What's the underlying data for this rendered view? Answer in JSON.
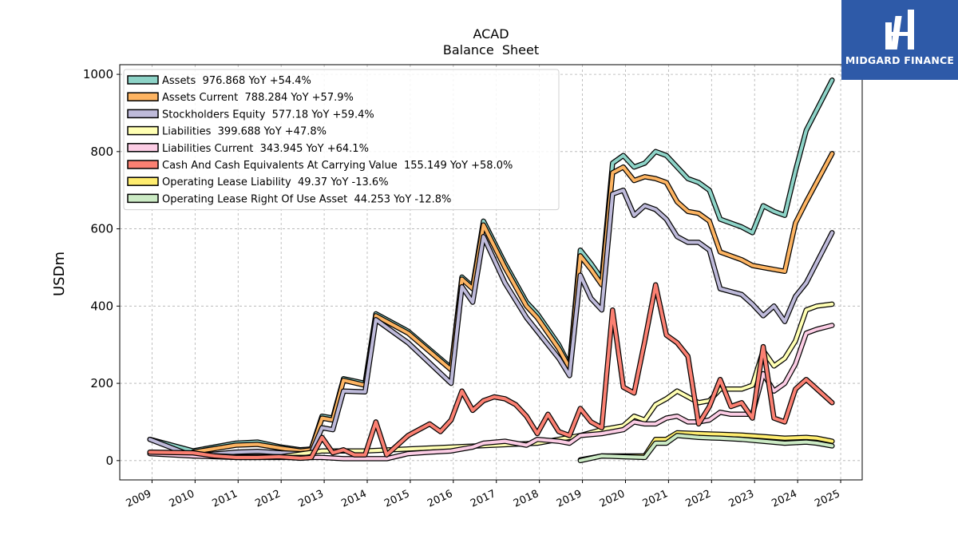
{
  "brand": {
    "name": "MIDGARD FINANCE"
  },
  "chart_data": {
    "type": "line",
    "title": "ACAD",
    "subtitle": "Balance  Sheet",
    "ylabel": "USDm",
    "xlabel": "",
    "ylim": [
      -50,
      1025
    ],
    "xlim": [
      2008.25,
      2025.5
    ],
    "yticks": [
      0,
      200,
      400,
      600,
      800,
      1000
    ],
    "xticks": [
      "2009",
      "2010",
      "2011",
      "2012",
      "2013",
      "2014",
      "2015",
      "2016",
      "2017",
      "2018",
      "2019",
      "2020",
      "2021",
      "2022",
      "2023",
      "2024",
      "2025"
    ],
    "grid": true,
    "legend_position": "top-left",
    "series": [
      {
        "name": "Assets",
        "legend": "Assets  976.868 YoY +54.4%",
        "color": "#8dd3c7",
        "points": [
          [
            2008.95,
            55
          ],
          [
            2009.95,
            25
          ],
          [
            2010.95,
            45
          ],
          [
            2011.45,
            48
          ],
          [
            2012.0,
            35
          ],
          [
            2012.45,
            28
          ],
          [
            2012.7,
            30
          ],
          [
            2012.95,
            115
          ],
          [
            2013.2,
            110
          ],
          [
            2013.45,
            212
          ],
          [
            2013.95,
            200
          ],
          [
            2014.2,
            380
          ],
          [
            2014.95,
            335
          ],
          [
            2015.95,
            240
          ],
          [
            2016.2,
            475
          ],
          [
            2016.45,
            450
          ],
          [
            2016.7,
            620
          ],
          [
            2017.2,
            510
          ],
          [
            2017.7,
            410
          ],
          [
            2017.95,
            380
          ],
          [
            2018.45,
            300
          ],
          [
            2018.7,
            245
          ],
          [
            2018.95,
            545
          ],
          [
            2019.2,
            510
          ],
          [
            2019.45,
            470
          ],
          [
            2019.7,
            770
          ],
          [
            2019.95,
            790
          ],
          [
            2020.2,
            760
          ],
          [
            2020.45,
            770
          ],
          [
            2020.7,
            800
          ],
          [
            2020.95,
            790
          ],
          [
            2021.45,
            730
          ],
          [
            2021.7,
            720
          ],
          [
            2021.95,
            700
          ],
          [
            2022.2,
            625
          ],
          [
            2022.7,
            605
          ],
          [
            2022.95,
            590
          ],
          [
            2023.2,
            660
          ],
          [
            2023.45,
            645
          ],
          [
            2023.7,
            635
          ],
          [
            2023.95,
            750
          ],
          [
            2024.2,
            855
          ],
          [
            2024.8,
            985
          ]
        ]
      },
      {
        "name": "Assets Current",
        "legend": "Assets Current  788.284 YoY +57.9%",
        "color": "#fdb462",
        "points": [
          [
            2009.95,
            22
          ],
          [
            2010.95,
            40
          ],
          [
            2011.45,
            42
          ],
          [
            2012.0,
            32
          ],
          [
            2012.45,
            25
          ],
          [
            2012.7,
            28
          ],
          [
            2012.95,
            110
          ],
          [
            2013.2,
            105
          ],
          [
            2013.45,
            208
          ],
          [
            2013.95,
            195
          ],
          [
            2014.2,
            375
          ],
          [
            2014.95,
            330
          ],
          [
            2015.95,
            235
          ],
          [
            2016.2,
            470
          ],
          [
            2016.45,
            445
          ],
          [
            2016.7,
            610
          ],
          [
            2017.2,
            500
          ],
          [
            2017.7,
            400
          ],
          [
            2017.95,
            370
          ],
          [
            2018.45,
            290
          ],
          [
            2018.7,
            240
          ],
          [
            2018.95,
            530
          ],
          [
            2019.2,
            495
          ],
          [
            2019.45,
            455
          ],
          [
            2019.7,
            745
          ],
          [
            2019.95,
            760
          ],
          [
            2020.2,
            725
          ],
          [
            2020.45,
            735
          ],
          [
            2020.7,
            730
          ],
          [
            2020.95,
            720
          ],
          [
            2021.2,
            670
          ],
          [
            2021.45,
            645
          ],
          [
            2021.7,
            640
          ],
          [
            2021.95,
            620
          ],
          [
            2022.2,
            540
          ],
          [
            2022.7,
            520
          ],
          [
            2022.95,
            505
          ],
          [
            2023.2,
            500
          ],
          [
            2023.45,
            495
          ],
          [
            2023.7,
            490
          ],
          [
            2023.95,
            615
          ],
          [
            2024.2,
            670
          ],
          [
            2024.8,
            795
          ]
        ]
      },
      {
        "name": "Stockholders Equity",
        "legend": "Stockholders Equity  577.18 YoY +59.4%",
        "color": "#bebada",
        "points": [
          [
            2008.95,
            55
          ],
          [
            2009.95,
            12
          ],
          [
            2010.95,
            22
          ],
          [
            2011.45,
            24
          ],
          [
            2012.0,
            20
          ],
          [
            2012.45,
            18
          ],
          [
            2012.7,
            20
          ],
          [
            2012.95,
            85
          ],
          [
            2013.2,
            80
          ],
          [
            2013.45,
            180
          ],
          [
            2013.95,
            178
          ],
          [
            2014.2,
            365
          ],
          [
            2014.95,
            305
          ],
          [
            2015.95,
            200
          ],
          [
            2016.2,
            450
          ],
          [
            2016.45,
            410
          ],
          [
            2016.7,
            580
          ],
          [
            2017.2,
            460
          ],
          [
            2017.7,
            370
          ],
          [
            2017.95,
            335
          ],
          [
            2018.45,
            265
          ],
          [
            2018.7,
            220
          ],
          [
            2018.95,
            480
          ],
          [
            2019.2,
            420
          ],
          [
            2019.45,
            390
          ],
          [
            2019.7,
            690
          ],
          [
            2019.95,
            700
          ],
          [
            2020.2,
            635
          ],
          [
            2020.45,
            660
          ],
          [
            2020.7,
            650
          ],
          [
            2020.95,
            625
          ],
          [
            2021.2,
            580
          ],
          [
            2021.45,
            565
          ],
          [
            2021.7,
            565
          ],
          [
            2021.95,
            545
          ],
          [
            2022.2,
            445
          ],
          [
            2022.7,
            430
          ],
          [
            2022.95,
            405
          ],
          [
            2023.2,
            375
          ],
          [
            2023.45,
            400
          ],
          [
            2023.7,
            360
          ],
          [
            2023.95,
            425
          ],
          [
            2024.2,
            460
          ],
          [
            2024.8,
            590
          ]
        ]
      },
      {
        "name": "Liabilities",
        "legend": "Liabilities  399.688 YoY +47.8%",
        "color": "#ffffb3",
        "points": [
          [
            2008.95,
            20
          ],
          [
            2009.95,
            15
          ],
          [
            2010.95,
            10
          ],
          [
            2012.0,
            10
          ],
          [
            2012.95,
            25
          ],
          [
            2013.95,
            25
          ],
          [
            2014.95,
            30
          ],
          [
            2015.95,
            35
          ],
          [
            2016.95,
            40
          ],
          [
            2017.95,
            45
          ],
          [
            2018.95,
            65
          ],
          [
            2019.45,
            80
          ],
          [
            2019.95,
            90
          ],
          [
            2020.2,
            115
          ],
          [
            2020.45,
            105
          ],
          [
            2020.7,
            145
          ],
          [
            2020.95,
            160
          ],
          [
            2021.2,
            180
          ],
          [
            2021.45,
            165
          ],
          [
            2021.7,
            150
          ],
          [
            2021.95,
            155
          ],
          [
            2022.2,
            185
          ],
          [
            2022.45,
            185
          ],
          [
            2022.7,
            185
          ],
          [
            2022.95,
            195
          ],
          [
            2023.2,
            285
          ],
          [
            2023.45,
            245
          ],
          [
            2023.7,
            265
          ],
          [
            2023.95,
            310
          ],
          [
            2024.2,
            390
          ],
          [
            2024.45,
            400
          ],
          [
            2024.8,
            405
          ]
        ]
      },
      {
        "name": "Liabilities Current",
        "legend": "Liabilities Current  343.945 YoY +64.1%",
        "color": "#fccde5",
        "points": [
          [
            2008.95,
            18
          ],
          [
            2009.95,
            12
          ],
          [
            2010.95,
            8
          ],
          [
            2012.0,
            8
          ],
          [
            2012.95,
            8
          ],
          [
            2013.45,
            5
          ],
          [
            2013.95,
            5
          ],
          [
            2014.45,
            5
          ],
          [
            2014.95,
            18
          ],
          [
            2015.45,
            22
          ],
          [
            2015.95,
            25
          ],
          [
            2016.45,
            35
          ],
          [
            2016.7,
            45
          ],
          [
            2017.2,
            50
          ],
          [
            2017.7,
            40
          ],
          [
            2017.95,
            55
          ],
          [
            2018.45,
            50
          ],
          [
            2018.7,
            45
          ],
          [
            2018.95,
            65
          ],
          [
            2019.45,
            70
          ],
          [
            2019.95,
            80
          ],
          [
            2020.2,
            100
          ],
          [
            2020.45,
            95
          ],
          [
            2020.7,
            95
          ],
          [
            2020.95,
            110
          ],
          [
            2021.2,
            115
          ],
          [
            2021.45,
            100
          ],
          [
            2021.7,
            100
          ],
          [
            2021.95,
            105
          ],
          [
            2022.2,
            125
          ],
          [
            2022.45,
            120
          ],
          [
            2022.7,
            120
          ],
          [
            2022.95,
            120
          ],
          [
            2023.2,
            225
          ],
          [
            2023.45,
            180
          ],
          [
            2023.7,
            200
          ],
          [
            2023.95,
            250
          ],
          [
            2024.2,
            330
          ],
          [
            2024.45,
            340
          ],
          [
            2024.8,
            350
          ]
        ]
      },
      {
        "name": "Cash And Cash Equivalents At Carrying Value",
        "legend": "Cash And Cash Equivalents At Carrying Value  155.149 YoY +58.0%",
        "color": "#fb8072",
        "points": [
          [
            2008.95,
            22
          ],
          [
            2009.95,
            20
          ],
          [
            2010.45,
            12
          ],
          [
            2010.95,
            8
          ],
          [
            2011.45,
            8
          ],
          [
            2011.95,
            10
          ],
          [
            2012.45,
            6
          ],
          [
            2012.7,
            8
          ],
          [
            2012.95,
            60
          ],
          [
            2013.2,
            20
          ],
          [
            2013.45,
            28
          ],
          [
            2013.7,
            15
          ],
          [
            2013.95,
            15
          ],
          [
            2014.2,
            100
          ],
          [
            2014.45,
            15
          ],
          [
            2014.95,
            65
          ],
          [
            2015.45,
            95
          ],
          [
            2015.7,
            75
          ],
          [
            2015.95,
            105
          ],
          [
            2016.2,
            180
          ],
          [
            2016.45,
            130
          ],
          [
            2016.7,
            155
          ],
          [
            2016.95,
            165
          ],
          [
            2017.2,
            160
          ],
          [
            2017.45,
            145
          ],
          [
            2017.7,
            115
          ],
          [
            2017.95,
            70
          ],
          [
            2018.2,
            120
          ],
          [
            2018.45,
            75
          ],
          [
            2018.7,
            65
          ],
          [
            2018.95,
            135
          ],
          [
            2019.2,
            100
          ],
          [
            2019.45,
            85
          ],
          [
            2019.7,
            390
          ],
          [
            2019.95,
            190
          ],
          [
            2020.2,
            175
          ],
          [
            2020.45,
            310
          ],
          [
            2020.7,
            455
          ],
          [
            2020.95,
            325
          ],
          [
            2021.2,
            305
          ],
          [
            2021.45,
            270
          ],
          [
            2021.7,
            95
          ],
          [
            2021.95,
            140
          ],
          [
            2022.2,
            210
          ],
          [
            2022.45,
            140
          ],
          [
            2022.7,
            150
          ],
          [
            2022.95,
            110
          ],
          [
            2023.2,
            295
          ],
          [
            2023.45,
            110
          ],
          [
            2023.7,
            100
          ],
          [
            2023.95,
            185
          ],
          [
            2024.2,
            210
          ],
          [
            2024.45,
            185
          ],
          [
            2024.8,
            150
          ]
        ]
      },
      {
        "name": "Operating Lease Liability",
        "legend": "Operating Lease Liability  49.37 YoY -13.6%",
        "color": "#ffed6f",
        "points": [
          [
            2018.95,
            2
          ],
          [
            2019.45,
            12
          ],
          [
            2019.95,
            12
          ],
          [
            2020.45,
            12
          ],
          [
            2020.7,
            55
          ],
          [
            2020.95,
            55
          ],
          [
            2021.2,
            72
          ],
          [
            2021.7,
            70
          ],
          [
            2022.2,
            68
          ],
          [
            2022.7,
            66
          ],
          [
            2023.2,
            62
          ],
          [
            2023.7,
            58
          ],
          [
            2024.2,
            60
          ],
          [
            2024.45,
            58
          ],
          [
            2024.8,
            50
          ]
        ]
      },
      {
        "name": "Operating Lease Right Of Use Asset",
        "legend": "Operating Lease Right Of Use Asset  44.253 YoY -12.8%",
        "color": "#ccebc5",
        "points": [
          [
            2018.95,
            0
          ],
          [
            2019.45,
            12
          ],
          [
            2019.95,
            10
          ],
          [
            2020.45,
            8
          ],
          [
            2020.7,
            45
          ],
          [
            2020.95,
            45
          ],
          [
            2021.2,
            65
          ],
          [
            2021.7,
            60
          ],
          [
            2022.2,
            58
          ],
          [
            2022.7,
            55
          ],
          [
            2023.2,
            50
          ],
          [
            2023.7,
            45
          ],
          [
            2024.2,
            48
          ],
          [
            2024.45,
            45
          ],
          [
            2024.8,
            38
          ]
        ]
      }
    ]
  }
}
